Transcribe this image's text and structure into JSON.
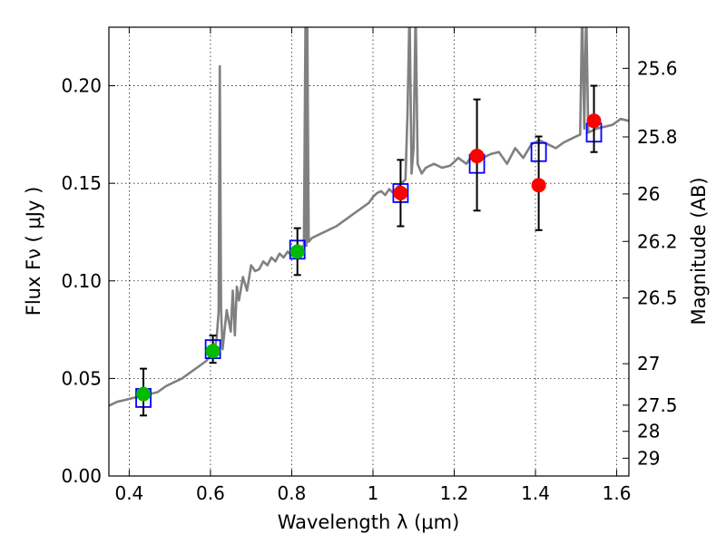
{
  "chart_data": {
    "type": "scatter",
    "title": "",
    "xlabel": "Wavelength  λ (μm)",
    "ylabel": "Flux  Fν  ( μJy )",
    "ylabel_right": "Magnitude (AB)",
    "xlim": [
      0.35,
      1.63
    ],
    "ylim": [
      0.0,
      0.23
    ],
    "grid": true,
    "x_ticks": [
      {
        "value": 0.4,
        "label": "0.4"
      },
      {
        "value": 0.6,
        "label": "0.6"
      },
      {
        "value": 0.8,
        "label": "0.8"
      },
      {
        "value": 1.0,
        "label": "1"
      },
      {
        "value": 1.2,
        "label": "1.2"
      },
      {
        "value": 1.4,
        "label": "1.4"
      },
      {
        "value": 1.6,
        "label": "1.6"
      }
    ],
    "y_ticks": [
      {
        "value": 0.0,
        "label": "0.00"
      },
      {
        "value": 0.05,
        "label": "0.05"
      },
      {
        "value": 0.1,
        "label": "0.10"
      },
      {
        "value": 0.15,
        "label": "0.15"
      },
      {
        "value": 0.2,
        "label": "0.20"
      }
    ],
    "right_ticks": [
      {
        "value": 25.6,
        "label": "25.6"
      },
      {
        "value": 25.8,
        "label": "25.8"
      },
      {
        "value": 26.0,
        "label": "26"
      },
      {
        "value": 26.2,
        "label": "26.2"
      },
      {
        "value": 26.5,
        "label": "26.5"
      },
      {
        "value": 27.0,
        "label": "27"
      },
      {
        "value": 27.5,
        "label": "27.5"
      },
      {
        "value": 28.0,
        "label": "28"
      },
      {
        "value": 29.0,
        "label": "29"
      }
    ],
    "colors": {
      "template": "#808080",
      "model_box": "#0000ff",
      "detection_optical": "#00bb00",
      "detection_nir": "#ff0000",
      "errorbar": "#000000"
    },
    "observed": [
      {
        "x": 0.435,
        "y": 0.042,
        "err_lo": 0.011,
        "err_hi": 0.013,
        "color": "green"
      },
      {
        "x": 0.606,
        "y": 0.064,
        "err_lo": 0.006,
        "err_hi": 0.008,
        "color": "green"
      },
      {
        "x": 0.814,
        "y": 0.115,
        "err_lo": 0.012,
        "err_hi": 0.012,
        "color": "green"
      },
      {
        "x": 1.068,
        "y": 0.145,
        "err_lo": 0.017,
        "err_hi": 0.017,
        "color": "red"
      },
      {
        "x": 1.256,
        "y": 0.164,
        "err_lo": 0.028,
        "err_hi": 0.029,
        "color": "red"
      },
      {
        "x": 1.408,
        "y": 0.149,
        "err_lo": 0.023,
        "err_hi": 0.025,
        "color": "red"
      },
      {
        "x": 1.544,
        "y": 0.182,
        "err_lo": 0.016,
        "err_hi": 0.018,
        "color": "red"
      }
    ],
    "model_fluxes": [
      {
        "x": 0.435,
        "y": 0.04
      },
      {
        "x": 0.606,
        "y": 0.065
      },
      {
        "x": 0.814,
        "y": 0.116
      },
      {
        "x": 1.068,
        "y": 0.145
      },
      {
        "x": 1.256,
        "y": 0.16
      },
      {
        "x": 1.408,
        "y": 0.166
      },
      {
        "x": 1.544,
        "y": 0.176
      }
    ],
    "template_spectrum": {
      "x": [
        0.35,
        0.37,
        0.39,
        0.41,
        0.43,
        0.45,
        0.47,
        0.49,
        0.51,
        0.53,
        0.55,
        0.57,
        0.59,
        0.6,
        0.61,
        0.615,
        0.62,
        0.623,
        0.626,
        0.63,
        0.64,
        0.65,
        0.655,
        0.66,
        0.665,
        0.67,
        0.68,
        0.69,
        0.7,
        0.71,
        0.72,
        0.73,
        0.74,
        0.75,
        0.76,
        0.77,
        0.78,
        0.79,
        0.8,
        0.81,
        0.82,
        0.83,
        0.834,
        0.836,
        0.838,
        0.842,
        0.85,
        0.87,
        0.89,
        0.91,
        0.93,
        0.95,
        0.97,
        0.99,
        1.0,
        1.01,
        1.02,
        1.03,
        1.04,
        1.05,
        1.06,
        1.07,
        1.08,
        1.085,
        1.09,
        1.095,
        1.1,
        1.105,
        1.11,
        1.12,
        1.13,
        1.15,
        1.17,
        1.19,
        1.21,
        1.23,
        1.25,
        1.26,
        1.27,
        1.29,
        1.31,
        1.33,
        1.35,
        1.37,
        1.39,
        1.41,
        1.43,
        1.45,
        1.47,
        1.49,
        1.51,
        1.515,
        1.52,
        1.525,
        1.53,
        1.55,
        1.57,
        1.59,
        1.61,
        1.63
      ],
      "y": [
        0.036,
        0.038,
        0.039,
        0.04,
        0.041,
        0.042,
        0.043,
        0.046,
        0.048,
        0.05,
        0.053,
        0.056,
        0.059,
        0.062,
        0.065,
        0.07,
        0.084,
        0.21,
        0.085,
        0.065,
        0.085,
        0.074,
        0.095,
        0.072,
        0.097,
        0.09,
        0.102,
        0.095,
        0.108,
        0.105,
        0.106,
        0.11,
        0.108,
        0.112,
        0.11,
        0.114,
        0.112,
        0.115,
        0.113,
        0.116,
        0.117,
        0.118,
        0.24,
        0.118,
        0.24,
        0.12,
        0.122,
        0.124,
        0.126,
        0.128,
        0.131,
        0.134,
        0.137,
        0.14,
        0.143,
        0.145,
        0.146,
        0.144,
        0.147,
        0.145,
        0.148,
        0.15,
        0.152,
        0.185,
        0.24,
        0.155,
        0.168,
        0.24,
        0.16,
        0.155,
        0.158,
        0.16,
        0.158,
        0.159,
        0.163,
        0.16,
        0.166,
        0.162,
        0.163,
        0.165,
        0.166,
        0.16,
        0.168,
        0.163,
        0.17,
        0.172,
        0.17,
        0.168,
        0.171,
        0.173,
        0.175,
        0.24,
        0.178,
        0.24,
        0.176,
        0.178,
        0.179,
        0.18,
        0.183,
        0.182
      ]
    }
  }
}
